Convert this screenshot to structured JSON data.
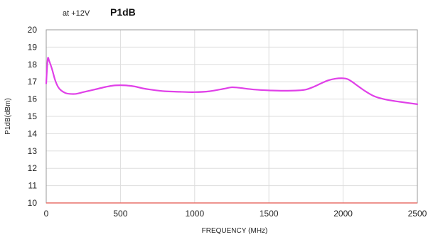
{
  "chart_data": {
    "type": "line",
    "title": "P1dB",
    "subtitle": "at +12V",
    "xlabel": "FREQUENCY (MHz)",
    "ylabel": "P1dB(dBm)",
    "xlim": [
      0,
      2500
    ],
    "ylim": [
      10,
      20
    ],
    "xticks": [
      0,
      500,
      1000,
      1500,
      2000,
      2500
    ],
    "yticks": [
      10,
      11,
      12,
      13,
      14,
      15,
      16,
      17,
      18,
      19,
      20
    ],
    "grid": true,
    "series": [
      {
        "color": "#e040e8",
        "x": [
          0,
          10,
          20,
          40,
          60,
          80,
          100,
          130,
          160,
          200,
          250,
          300,
          350,
          400,
          450,
          500,
          550,
          600,
          650,
          700,
          800,
          900,
          1000,
          1100,
          1200,
          1250,
          1300,
          1400,
          1500,
          1600,
          1700,
          1750,
          1800,
          1850,
          1900,
          1950,
          2000,
          2030,
          2060,
          2100,
          2150,
          2200,
          2250,
          2300,
          2400,
          2500
        ],
        "y": [
          16.9,
          18.3,
          18.2,
          17.7,
          17.1,
          16.7,
          16.5,
          16.35,
          16.3,
          16.3,
          16.4,
          16.5,
          16.6,
          16.7,
          16.78,
          16.8,
          16.78,
          16.72,
          16.62,
          16.55,
          16.45,
          16.42,
          16.4,
          16.45,
          16.6,
          16.68,
          16.65,
          16.55,
          16.5,
          16.48,
          16.5,
          16.55,
          16.7,
          16.9,
          17.08,
          17.18,
          17.2,
          17.15,
          17.0,
          16.75,
          16.45,
          16.2,
          16.05,
          15.95,
          15.82,
          15.7
        ]
      }
    ],
    "colors": {
      "line": "#e040e8",
      "baseline": "#e8706a",
      "grid": "#dddddd",
      "frame": "#999999"
    }
  }
}
